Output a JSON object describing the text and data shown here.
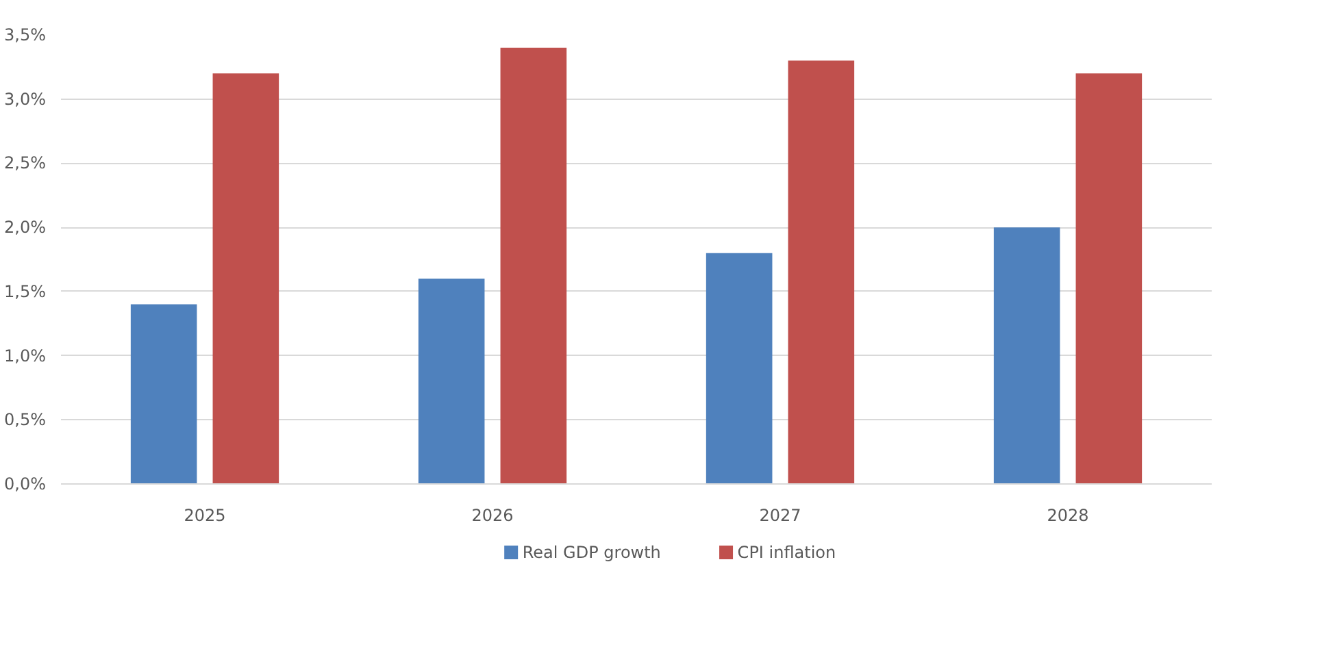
{
  "chart_data": {
    "type": "bar",
    "categories": [
      "2025",
      "2026",
      "2027",
      "2028"
    ],
    "series": [
      {
        "name": "Real GDP growth",
        "color": "#4f81bd",
        "values": [
          1.4,
          1.6,
          1.8,
          2.0
        ]
      },
      {
        "name": "CPI inflation",
        "color": "#c0504d",
        "values": [
          3.2,
          3.4,
          3.3,
          3.2
        ]
      }
    ],
    "ylim": [
      0,
      3.5
    ],
    "yticks": [
      {
        "value": 0,
        "label": "0,0%"
      },
      {
        "value": 0.5,
        "label": "0,5%"
      },
      {
        "value": 1,
        "label": "1,0%"
      },
      {
        "value": 1.5,
        "label": "1,5%"
      },
      {
        "value": 2,
        "label": "2,0%"
      },
      {
        "value": 2.5,
        "label": "2,5%"
      },
      {
        "value": 3,
        "label": "3,0%"
      },
      {
        "value": 3.5,
        "label": "3,5%"
      }
    ],
    "grid": "y",
    "legend": "bottom"
  }
}
